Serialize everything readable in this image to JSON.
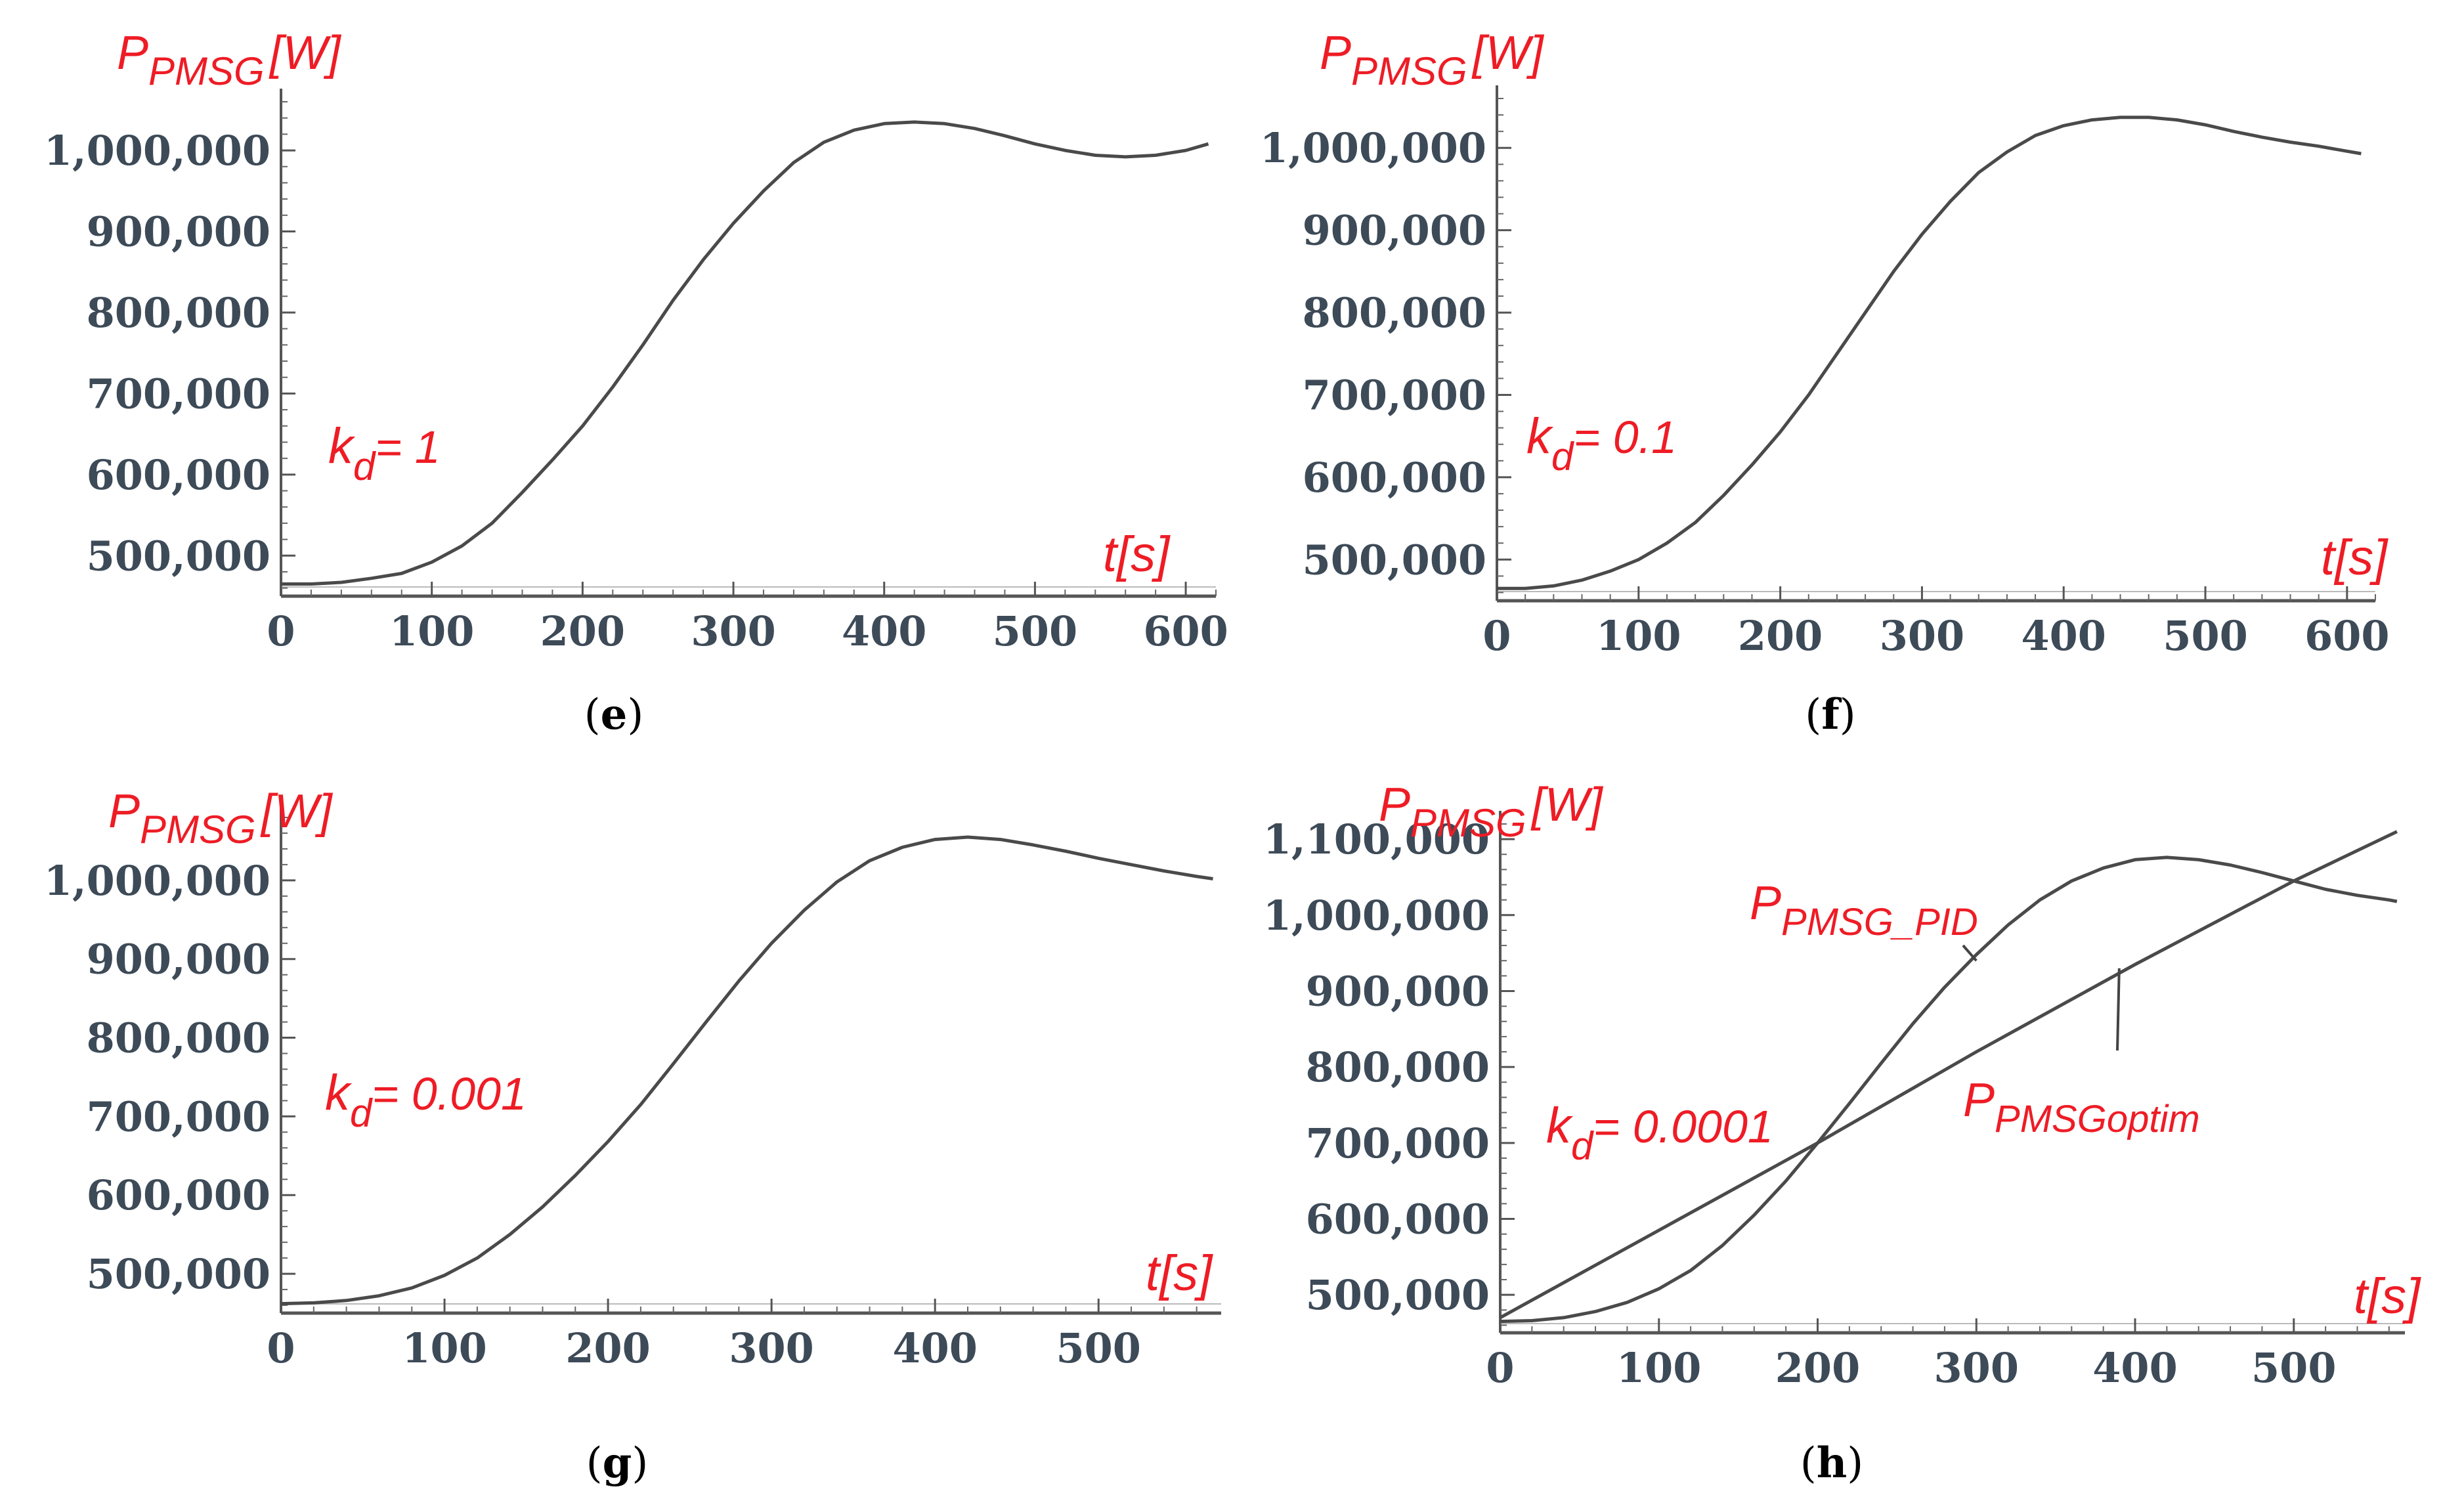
{
  "figure": {
    "ylabel_main": "P",
    "ylabel_sub": "PMSG",
    "ylabel_unit": "[W]",
    "xlabel": "t[s]"
  },
  "chart_data": [
    {
      "id": "e",
      "type": "line",
      "caption": "e",
      "ylabel": "PPMSG[W]",
      "xlabel": "t[s]",
      "annotation": {
        "k_main": "k",
        "k_sub": "d",
        "k_value": "= 1"
      },
      "xlim": [
        0,
        620
      ],
      "ylim": [
        450000,
        1060000
      ],
      "xticks": [
        0,
        100,
        200,
        300,
        400,
        500,
        600
      ],
      "yticks": [
        500000,
        600000,
        700000,
        800000,
        900000,
        1000000
      ],
      "xtick_labels": [
        "0",
        "100",
        "200",
        "300",
        "400",
        "500",
        "600"
      ],
      "ytick_labels": [
        "500,000",
        "600,000",
        "700,000",
        "800,000",
        "900,000",
        "1,000,000"
      ],
      "series": [
        {
          "name": "P_PMSG",
          "color": "#4a4a4a",
          "x": [
            0,
            20,
            40,
            60,
            80,
            100,
            120,
            140,
            160,
            180,
            200,
            220,
            240,
            260,
            280,
            300,
            320,
            340,
            360,
            380,
            400,
            420,
            440,
            460,
            480,
            500,
            520,
            540,
            560,
            580,
            600,
            615
          ],
          "y": [
            465000,
            465000,
            467000,
            472000,
            478000,
            492000,
            512000,
            540000,
            578000,
            618000,
            660000,
            708000,
            760000,
            815000,
            865000,
            910000,
            950000,
            985000,
            1010000,
            1025000,
            1033000,
            1035000,
            1033000,
            1027000,
            1018000,
            1008000,
            1000000,
            994000,
            992000,
            994000,
            1000000,
            1008000
          ]
        }
      ]
    },
    {
      "id": "f",
      "type": "line",
      "caption": "f",
      "ylabel": "PPMSG[W]",
      "xlabel": "t[s]",
      "annotation": {
        "k_main": "k",
        "k_sub": "d",
        "k_value": "= 0.1"
      },
      "xlim": [
        0,
        620
      ],
      "ylim": [
        450000,
        1060000
      ],
      "xticks": [
        0,
        100,
        200,
        300,
        400,
        500,
        600
      ],
      "yticks": [
        500000,
        600000,
        700000,
        800000,
        900000,
        1000000
      ],
      "xtick_labels": [
        "0",
        "100",
        "200",
        "300",
        "400",
        "500",
        "600"
      ],
      "ytick_labels": [
        "500,000",
        "600,000",
        "700,000",
        "800,000",
        "900,000",
        "1,000,000"
      ],
      "series": [
        {
          "name": "P_PMSG",
          "color": "#4a4a4a",
          "x": [
            0,
            20,
            40,
            60,
            80,
            100,
            120,
            140,
            160,
            180,
            200,
            220,
            240,
            260,
            280,
            300,
            320,
            340,
            360,
            380,
            400,
            420,
            440,
            460,
            480,
            500,
            520,
            540,
            560,
            580,
            600,
            610
          ],
          "y": [
            465000,
            465000,
            468000,
            475000,
            486000,
            500000,
            520000,
            545000,
            578000,
            615000,
            655000,
            700000,
            750000,
            800000,
            850000,
            895000,
            935000,
            970000,
            995000,
            1015000,
            1027000,
            1034000,
            1037000,
            1037000,
            1034000,
            1028000,
            1020000,
            1013000,
            1007000,
            1002000,
            996000,
            993000
          ]
        }
      ]
    },
    {
      "id": "g",
      "type": "line",
      "caption": "g",
      "ylabel": "PPMSG[W]",
      "xlabel": "t[s]",
      "annotation": {
        "k_main": "k",
        "k_sub": "d",
        "k_value": "= 0.001"
      },
      "xlim": [
        0,
        575
      ],
      "ylim": [
        450000,
        1080000
      ],
      "xticks": [
        0,
        100,
        200,
        300,
        400,
        500
      ],
      "yticks": [
        500000,
        600000,
        700000,
        800000,
        900000,
        1000000
      ],
      "xtick_labels": [
        "0",
        "100",
        "200",
        "300",
        "400",
        "500"
      ],
      "ytick_labels": [
        "500,000",
        "600,000",
        "700,000",
        "800,000",
        "900,000",
        "1,000,000"
      ],
      "series": [
        {
          "name": "P_PMSG",
          "color": "#4a4a4a",
          "x": [
            0,
            20,
            40,
            60,
            80,
            100,
            120,
            140,
            160,
            180,
            200,
            220,
            240,
            260,
            280,
            300,
            320,
            340,
            360,
            380,
            400,
            420,
            440,
            460,
            480,
            500,
            520,
            540,
            560,
            570
          ],
          "y": [
            462000,
            463000,
            466000,
            472000,
            482000,
            498000,
            520000,
            550000,
            585000,
            625000,
            668000,
            715000,
            767000,
            820000,
            872000,
            920000,
            962000,
            998000,
            1025000,
            1042000,
            1052000,
            1055000,
            1052000,
            1045000,
            1037000,
            1028000,
            1020000,
            1012000,
            1005000,
            1002000
          ]
        }
      ]
    },
    {
      "id": "h",
      "type": "line",
      "caption": "h",
      "ylabel": "PPMSG[W]",
      "xlabel": "t[s]",
      "annotation": {
        "k_main": "k",
        "k_sub": "d",
        "k_value": "= 0.0001"
      },
      "xlim": [
        0,
        570
      ],
      "ylim": [
        450000,
        1120000
      ],
      "xticks": [
        0,
        100,
        200,
        300,
        400,
        500
      ],
      "yticks": [
        500000,
        600000,
        700000,
        800000,
        900000,
        1000000,
        1100000
      ],
      "xtick_labels": [
        "0",
        "100",
        "200",
        "300",
        "400",
        "500"
      ],
      "ytick_labels": [
        "500,000",
        "600,000",
        "700,000",
        "800,000",
        "900,000",
        "1,000,000",
        "1,100,000"
      ],
      "series": [
        {
          "name": "P_PMSG_PID",
          "label_main": "P",
          "label_sub": "PMSG_PID",
          "color": "#4a4a4a",
          "x": [
            0,
            20,
            40,
            60,
            80,
            100,
            120,
            140,
            160,
            180,
            200,
            220,
            240,
            260,
            280,
            300,
            320,
            340,
            360,
            380,
            400,
            420,
            440,
            460,
            480,
            500,
            520,
            540,
            560,
            565
          ],
          "y": [
            465000,
            466000,
            470000,
            478000,
            490000,
            508000,
            532000,
            565000,
            605000,
            650000,
            700000,
            752000,
            805000,
            857000,
            905000,
            948000,
            987000,
            1020000,
            1045000,
            1062000,
            1073000,
            1076000,
            1073000,
            1066000,
            1056000,
            1045000,
            1034000,
            1026000,
            1020000,
            1018000
          ]
        },
        {
          "name": "P_PMSGoptim",
          "label_main": "P",
          "label_sub": "PMSGoptim",
          "color": "#4a4a4a",
          "x": [
            0,
            100,
            200,
            300,
            400,
            500,
            565
          ],
          "y": [
            470000,
            585000,
            700000,
            820000,
            935000,
            1045000,
            1110000
          ]
        }
      ]
    }
  ]
}
